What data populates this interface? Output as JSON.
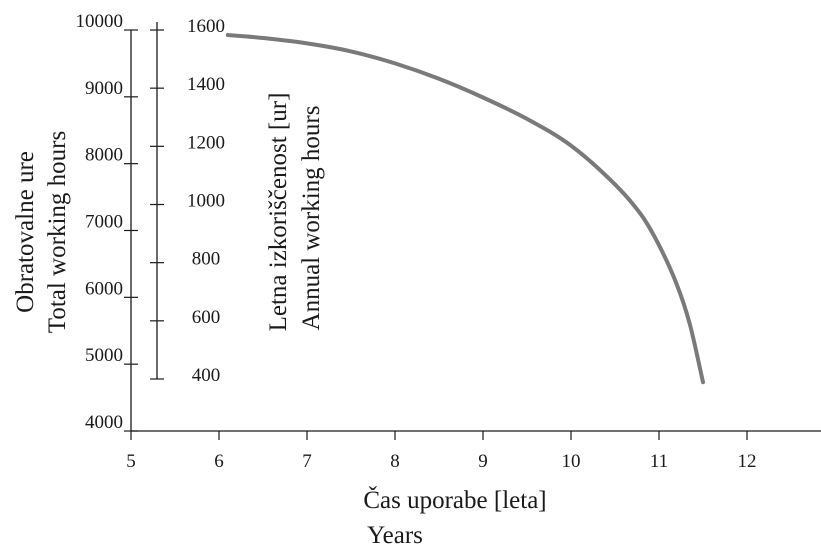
{
  "chart_data": {
    "type": "line",
    "x_axis": {
      "ticks": [
        5,
        6,
        7,
        8,
        9,
        10,
        11,
        12
      ],
      "range": [
        5,
        12.8
      ],
      "label_line1": "Čas uporabe [leta]",
      "label_line2": "Years"
    },
    "y_axis_total": {
      "ticks": [
        4000,
        5000,
        6000,
        7000,
        8000,
        9000,
        10000
      ],
      "range": [
        4000,
        10000
      ],
      "label_line1": "Obratovalne ure",
      "label_line2": "Total working hours"
    },
    "y_axis_annual": {
      "ticks": [
        400,
        600,
        800,
        1000,
        1200,
        1400,
        1600
      ],
      "range": [
        400,
        1600
      ],
      "label_line1": "Letna izkoriščenost [ur]",
      "label_line2": "Annual working hours"
    },
    "series": [
      {
        "color": "#7a7a7a",
        "x": [
          6.1,
          6.5,
          7.0,
          7.5,
          8.0,
          8.5,
          9.0,
          9.5,
          10.0,
          10.5,
          10.8,
          11.0,
          11.2,
          11.35,
          11.5
        ],
        "y": [
          9925,
          9880,
          9800,
          9680,
          9500,
          9270,
          8990,
          8670,
          8270,
          7690,
          7230,
          6780,
          6200,
          5600,
          4730
        ]
      }
    ],
    "grid": false,
    "legend": "none"
  }
}
